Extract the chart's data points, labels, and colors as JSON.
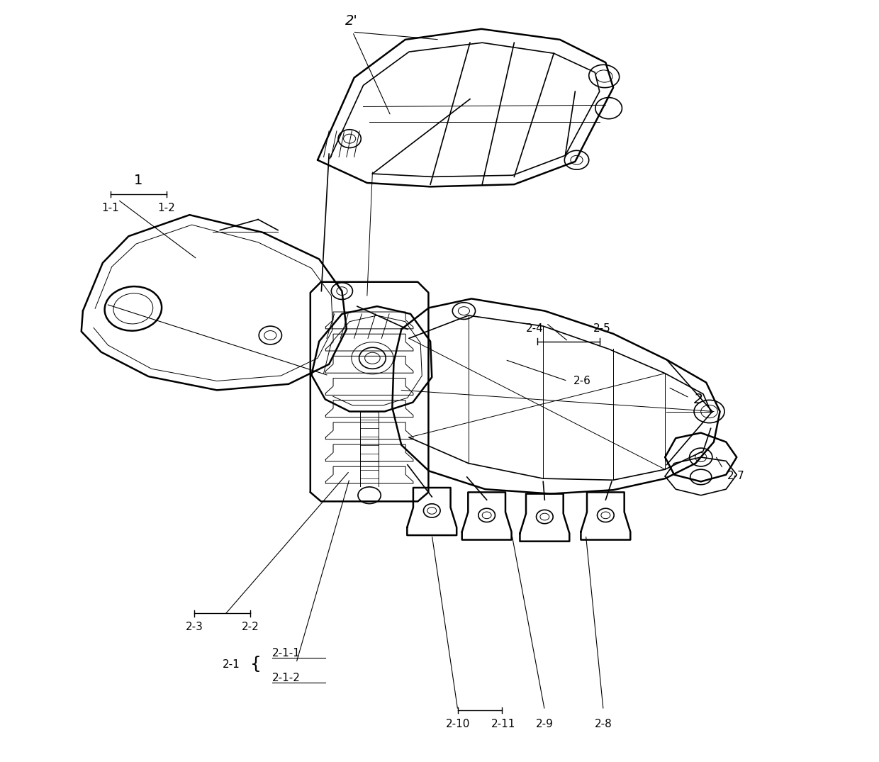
{
  "bg_color": "#ffffff",
  "line_color": "#000000",
  "fig_width": 12.4,
  "fig_height": 10.75,
  "dpi": 100,
  "fs_large": 14,
  "fs_med": 12,
  "fs_small": 11,
  "lw_thick": 1.8,
  "lw": 1.2,
  "lw_thin": 0.7,
  "lw_xtra": 0.5
}
